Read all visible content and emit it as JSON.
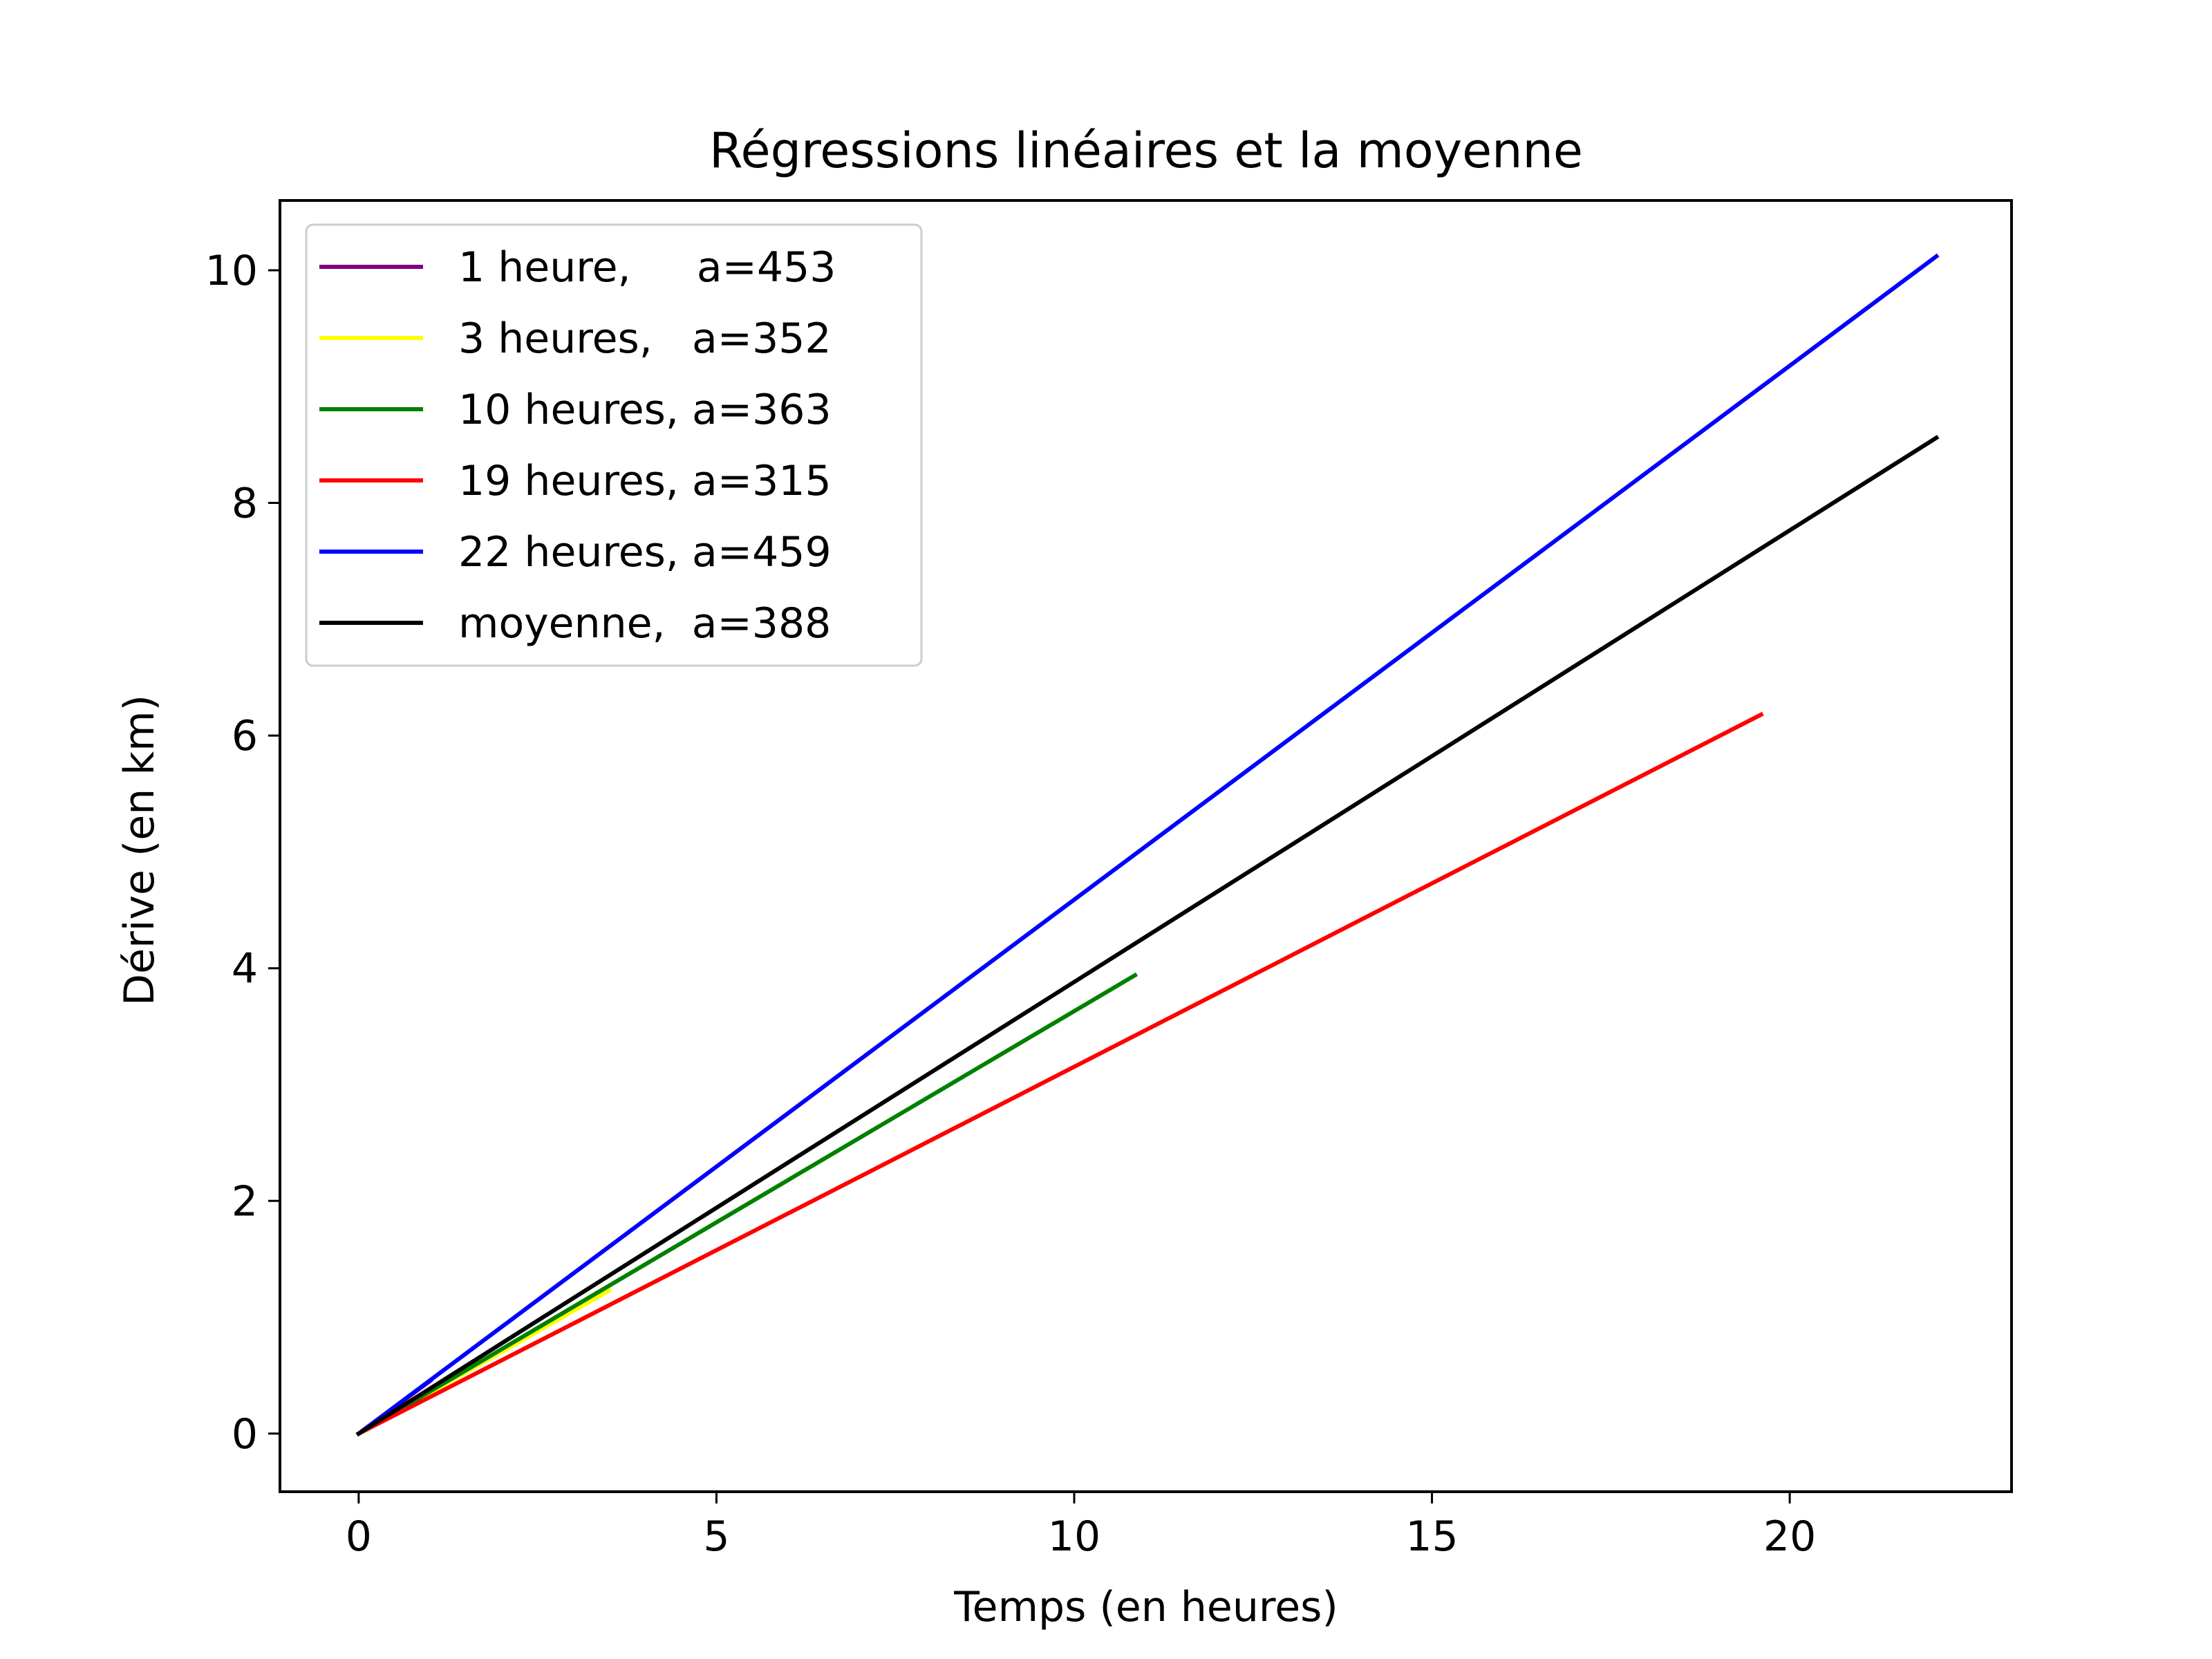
{
  "chart_data": {
    "type": "line",
    "title": "Régressions linéaires et la moyenne",
    "xlabel": "Temps (en heures)",
    "ylabel": "Dérive (en km)",
    "xlim": [
      -1.1,
      23.1
    ],
    "ylim": [
      -0.5,
      10.6
    ],
    "xticks": [
      0,
      5,
      10,
      15,
      20
    ],
    "yticks": [
      0,
      2,
      4,
      6,
      8,
      10
    ],
    "grid": false,
    "legend_position": "upper-left",
    "series": [
      {
        "name": "1 heure,     a=453",
        "color": "#800080",
        "points": [
          [
            0,
            0
          ],
          [
            1,
            0.453
          ]
        ]
      },
      {
        "name": "3 heures,   a=352",
        "color": "#ffff00",
        "points": [
          [
            0,
            0
          ],
          [
            3.5,
            1.23
          ]
        ]
      },
      {
        "name": "10 heures, a=363",
        "color": "#008000",
        "points": [
          [
            0,
            0
          ],
          [
            10.85,
            3.94
          ]
        ]
      },
      {
        "name": "19 heures, a=315",
        "color": "#ff0000",
        "points": [
          [
            0,
            0
          ],
          [
            19.6,
            6.18
          ]
        ]
      },
      {
        "name": "22 heures, a=459",
        "color": "#0000ff",
        "points": [
          [
            0,
            0
          ],
          [
            22.05,
            10.12
          ]
        ]
      },
      {
        "name": "moyenne,  a=388",
        "color": "#000000",
        "points": [
          [
            0,
            0
          ],
          [
            22.05,
            8.56
          ]
        ]
      }
    ]
  }
}
